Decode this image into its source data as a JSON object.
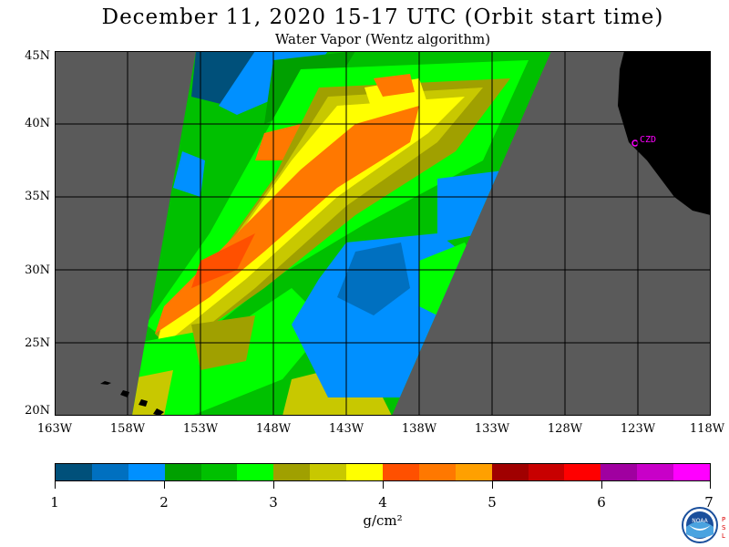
{
  "title": "December 11, 2020  15-17 UTC  (Orbit start time)",
  "subtitle": "Water Vapor (Wentz algorithm)",
  "map": {
    "lat_labels": [
      "45N",
      "40N",
      "35N",
      "30N",
      "25N",
      "20N"
    ],
    "lon_labels": [
      "163W",
      "158W",
      "153W",
      "148W",
      "143W",
      "138W",
      "133W",
      "128W",
      "123W",
      "118W"
    ],
    "station_label": "CZD",
    "colors": {
      "no_data": "#5a5a5a",
      "land": "#000000",
      "grid": "#000000",
      "station": "#ff00ff"
    }
  },
  "colorbar": {
    "labels": [
      "1",
      "2",
      "3",
      "4",
      "5",
      "6",
      "7"
    ],
    "units": "g/cm²",
    "colors": [
      "#00507a",
      "#0070c0",
      "#0090ff",
      "#00a000",
      "#00c000",
      "#00ff00",
      "#a0a000",
      "#c8c800",
      "#ffff00",
      "#ff5000",
      "#ff7800",
      "#ffa000",
      "#a00000",
      "#c80000",
      "#ff0000",
      "#a000a0",
      "#c800c8",
      "#ff00ff"
    ]
  },
  "logo": {
    "text": "NOAA",
    "psl_text": "PSL"
  }
}
